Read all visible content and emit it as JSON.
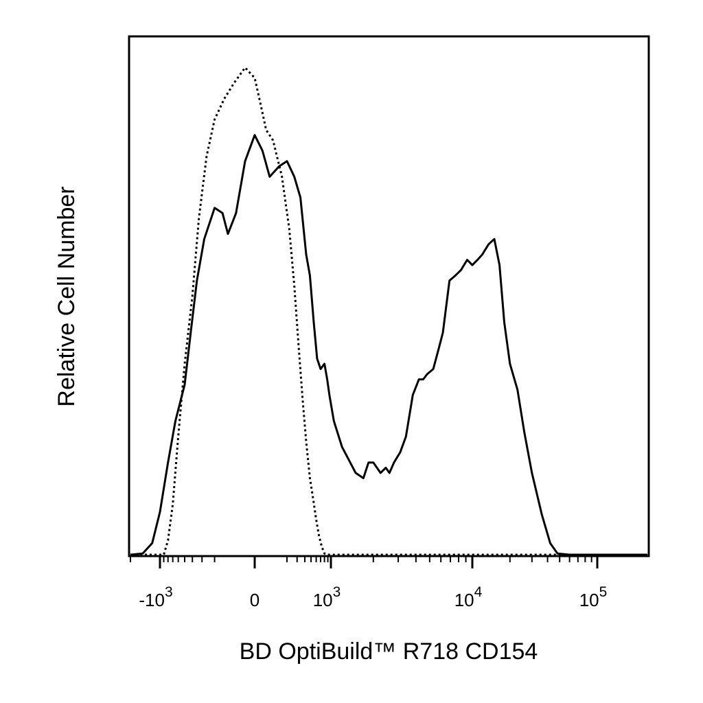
{
  "chart_data": {
    "type": "line",
    "title": "",
    "xlabel": "BD OptiBuild™ R718 CD154",
    "ylabel": "Relative Cell Number",
    "x_scale": "biexponential",
    "xlim": [
      -2000,
      160000
    ],
    "grid": false,
    "legend": "none",
    "x_ticks": [
      {
        "value": -1000,
        "sign": "-",
        "base": "10",
        "exp": "3"
      },
      {
        "value": 0,
        "sign": "",
        "base": "0",
        "exp": ""
      },
      {
        "value": 1000,
        "sign": "",
        "base": "10",
        "exp": "3"
      },
      {
        "value": 10000,
        "sign": "",
        "base": "10",
        "exp": "4"
      },
      {
        "value": 100000,
        "sign": "",
        "base": "10",
        "exp": "5"
      }
    ],
    "series": [
      {
        "style": "solid",
        "x": [
          -2000,
          -1500,
          -1200,
          -1000,
          -800,
          -650,
          -500,
          -420,
          -350,
          -280,
          -200,
          -150,
          -120,
          -80,
          -40,
          0,
          40,
          80,
          140,
          200,
          270,
          340,
          420,
          480,
          550,
          620,
          700,
          800,
          880,
          950,
          1050,
          1200,
          1500,
          1700,
          1850,
          2000,
          2250,
          2450,
          2600,
          2800,
          3100,
          3400,
          3800,
          4200,
          4500,
          4800,
          5300,
          5800,
          6200,
          6900,
          7600,
          8300,
          9200,
          10000,
          11000,
          12000,
          13500,
          15000,
          16500,
          18000,
          20000,
          23000,
          26000,
          30000,
          36000,
          42000,
          48000,
          60000,
          100000,
          160000
        ],
        "y": [
          0.0,
          0.5,
          2.5,
          8.5,
          18,
          26,
          33,
          43,
          53,
          61,
          67,
          66,
          62,
          66,
          76,
          81,
          78,
          73,
          75,
          76,
          73,
          69,
          58,
          54,
          45,
          38,
          36,
          37,
          34,
          31,
          26,
          21,
          16,
          15,
          18,
          18,
          16,
          17,
          16,
          18,
          20,
          23,
          31,
          34,
          34,
          35,
          36,
          40,
          43,
          53,
          54,
          55,
          57,
          56,
          57,
          58,
          60,
          61,
          56,
          45,
          37,
          32,
          24,
          16,
          8,
          2.5,
          0.5,
          0.0,
          0.0,
          0.0
        ]
      },
      {
        "style": "dotted",
        "x": [
          -2000,
          -900,
          -800,
          -700,
          -600,
          -500,
          -400,
          -330,
          -260,
          -200,
          -140,
          -90,
          -40,
          0,
          30,
          60,
          100,
          160,
          220,
          270,
          320,
          370,
          420,
          480,
          540,
          600,
          660,
          730,
          800,
          880,
          1000,
          1200,
          160000
        ],
        "y": [
          0,
          0,
          3,
          10,
          23,
          37,
          50,
          65,
          77,
          84,
          88,
          91,
          94,
          92,
          87,
          82,
          80,
          73,
          63,
          52,
          40,
          30,
          22,
          15,
          11,
          7,
          4,
          1.8,
          0.5,
          0,
          0,
          0,
          0
        ]
      }
    ]
  }
}
